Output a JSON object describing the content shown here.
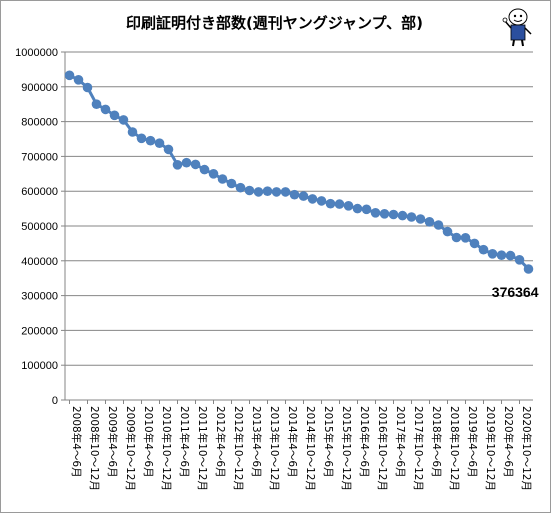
{
  "chart_data": {
    "type": "line",
    "title": "印刷証明付き部数(週刊ヤングジャンプ、部)",
    "xlabel": "",
    "ylabel": "",
    "ylim": [
      0,
      1000000
    ],
    "yticks": [
      "1000000",
      "900000",
      "800000",
      "700000",
      "600000",
      "500000",
      "400000",
      "300000",
      "200000",
      "100000",
      "0"
    ],
    "ytick_values": [
      1000000,
      900000,
      800000,
      700000,
      600000,
      500000,
      400000,
      300000,
      200000,
      100000,
      0
    ],
    "grid": true,
    "legend": "none",
    "categories": [
      "2008年4～6月",
      "2008年7～9月",
      "2008年10～12月",
      "2009年1～3月",
      "2009年4～6月",
      "2009年7～9月",
      "2009年10～12月",
      "2010年1～3月",
      "2010年4～6月",
      "2010年7～9月",
      "2010年10～12月",
      "2011年1～3月",
      "2011年4～6月",
      "2011年7～9月",
      "2011年10～12月",
      "2012年1～3月",
      "2012年4～6月",
      "2012年7～9月",
      "2012年10～12月",
      "2013年1～3月",
      "2013年4～6月",
      "2013年7～9月",
      "2013年10～12月",
      "2014年1～3月",
      "2014年4～6月",
      "2014年7～9月",
      "2014年10～12月",
      "2015年1～3月",
      "2015年4～6月",
      "2015年7～9月",
      "2015年10～12月",
      "2016年1～3月",
      "2016年4～6月",
      "2016年7～9月",
      "2016年10～12月",
      "2017年1～3月",
      "2017年4～6月",
      "2017年7～9月",
      "2017年10～12月",
      "2018年1～3月",
      "2018年4～6月",
      "2018年7～9月",
      "2018年10～12月",
      "2019年1～3月",
      "2019年4～6月",
      "2019年7～9月",
      "2019年10～12月",
      "2020年1～3月",
      "2020年4～6月",
      "2020年7～9月",
      "2020年10～12月",
      "2021年1～3月"
    ],
    "xtick_labels": [
      "2008年4～6月",
      "2008年10～12月",
      "2009年4～6月",
      "2009年10～12月",
      "2010年4～6月",
      "2010年10～12月",
      "2011年4～6月",
      "2011年10～12月",
      "2012年4～6月",
      "2012年10～12月",
      "2013年4～6月",
      "2013年10～12月",
      "2014年4～6月",
      "2014年10～12月",
      "2015年4～6月",
      "2015年10～12月",
      "2016年4～6月",
      "2016年10～12月",
      "2017年4～6月",
      "2017年10～12月",
      "2018年4～6月",
      "2018年10～12月",
      "2019年4～6月",
      "2019年10～12月",
      "2020年4～6月",
      "2020年10～12月"
    ],
    "values": [
      933000,
      920000,
      898000,
      850000,
      835000,
      818000,
      805000,
      770000,
      752000,
      745000,
      738000,
      720000,
      676000,
      682000,
      677000,
      662000,
      650000,
      635000,
      622000,
      610000,
      602000,
      598000,
      600000,
      598000,
      598000,
      590000,
      586000,
      578000,
      572000,
      564000,
      563000,
      558000,
      550000,
      548000,
      538000,
      535000,
      533000,
      530000,
      526000,
      520000,
      512000,
      503000,
      484000,
      467000,
      466000,
      450000,
      432000,
      420000,
      416000,
      415000,
      403000,
      376364
    ],
    "data_label": "376364",
    "colors": {
      "line": "#4f81bd",
      "grid": "#868686",
      "axis": "#868686"
    }
  },
  "logo_icon": "mascot-character-icon"
}
